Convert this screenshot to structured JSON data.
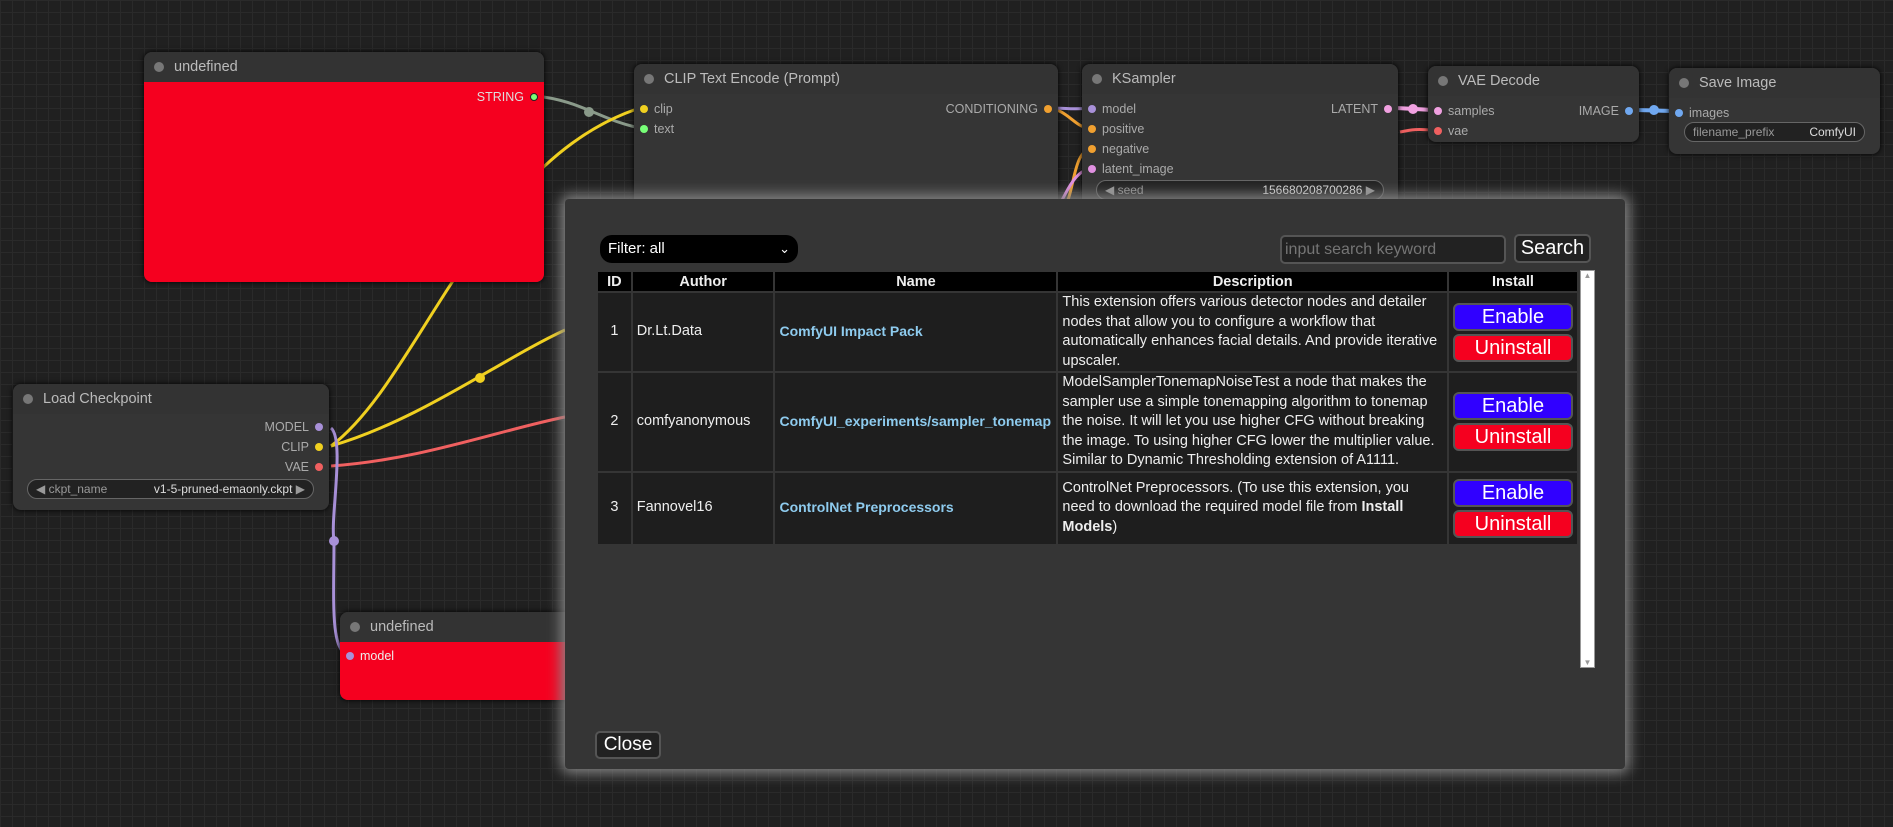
{
  "nodes": {
    "undefined_top": {
      "title": "undefined",
      "outputs": [
        "STRING"
      ]
    },
    "clip": {
      "title": "CLIP Text Encode (Prompt)",
      "inputs": [
        "clip",
        "text"
      ],
      "outputs": [
        "CONDITIONING"
      ]
    },
    "ksampler": {
      "title": "KSampler",
      "inputs": [
        "model",
        "positive",
        "negative",
        "latent_image"
      ],
      "outputs": [
        "LATENT"
      ],
      "seed_label": "seed",
      "seed_value": "156680208700286"
    },
    "vae_decode": {
      "title": "VAE Decode",
      "inputs": [
        "samples",
        "vae"
      ],
      "outputs": [
        "IMAGE"
      ]
    },
    "save_image": {
      "title": "Save Image",
      "inputs": [
        "images"
      ],
      "widget_label": "filename_prefix",
      "widget_value": "ComfyUI"
    },
    "load_checkpoint": {
      "title": "Load Checkpoint",
      "outputs": [
        "MODEL",
        "CLIP",
        "VAE"
      ],
      "widget_label": "ckpt_name",
      "widget_value": "v1-5-pruned-emaonly.ckpt"
    },
    "undefined_bottom": {
      "title": "undefined",
      "inputs": [
        "model"
      ]
    }
  },
  "dialog": {
    "filter": "Filter: all",
    "search_placeholder": "input search keyword",
    "search_label": "Search",
    "close_label": "Close",
    "columns": [
      "ID",
      "Author",
      "Name",
      "Description",
      "Install"
    ],
    "rows": [
      {
        "id": "1",
        "author": "Dr.Lt.Data",
        "name": "ComfyUI Impact Pack",
        "description": "This extension offers various detector nodes and detailer nodes that allow you to configure a workflow that automatically enhances facial details. And provide iterative upscaler."
      },
      {
        "id": "2",
        "author": "comfyanonymous",
        "name": "ComfyUI_experiments/sampler_tonemap",
        "description": "ModelSamplerTonemapNoiseTest a node that makes the sampler use a simple tonemapping algorithm to tonemap the noise. It will let you use higher CFG without breaking the image. To using higher CFG lower the multiplier value. Similar to Dynamic Thresholding extension of A1111."
      },
      {
        "id": "3",
        "author": "Fannovel16",
        "name": "ControlNet Preprocessors",
        "description": "ControlNet Preprocessors. (To use this extension, you need to download the required model file from ",
        "description_bold": "Install Models",
        "description_end": ")"
      }
    ],
    "enable_label": "Enable",
    "uninstall_label": "Uninstall"
  },
  "colors": {
    "accent_enable": "#3000ff",
    "accent_uninstall": "#f5001f",
    "link": "#8ecbee"
  }
}
